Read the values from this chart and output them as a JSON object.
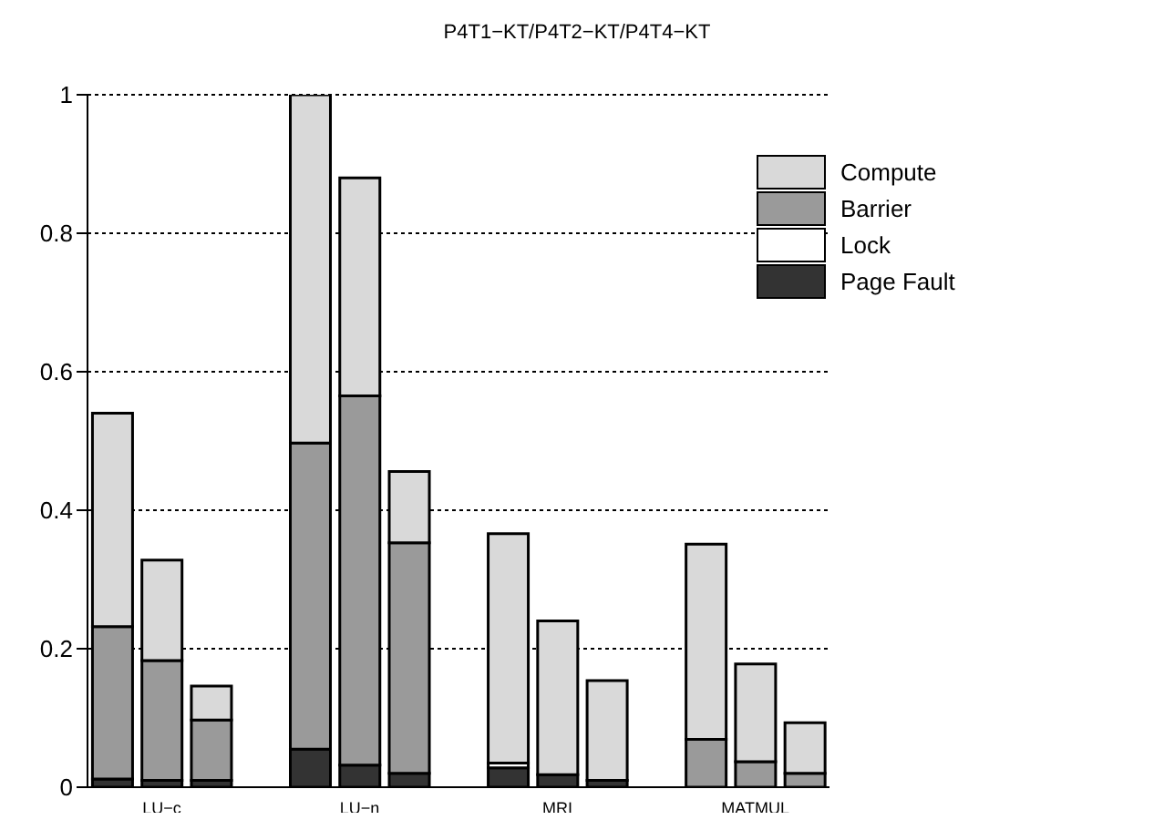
{
  "chart_data": {
    "type": "bar",
    "title": "P4T1−KT/P4T2−KT/P4T4−KT",
    "stacked": true,
    "categories": [
      null,
      "LU−c",
      null,
      null,
      null,
      "LU−n",
      null,
      null,
      null,
      "MRI",
      null,
      null,
      null,
      "MATMUL",
      null
    ],
    "series": [
      {
        "name": "Page Fault",
        "color": "#333333",
        "values": [
          0.012,
          0.01,
          0.01,
          null,
          0.055,
          0.032,
          0.02,
          null,
          0.028,
          0.018,
          0.01,
          null,
          null,
          null,
          null
        ]
      },
      {
        "name": "Lock",
        "color": "#ffffff",
        "values": [
          0,
          0,
          0,
          null,
          0,
          0,
          0,
          null,
          0.007,
          0,
          0,
          null,
          0,
          0,
          0
        ]
      },
      {
        "name": "Barrier",
        "color": "#9a9a9a",
        "values": [
          0.22,
          0.173,
          0.087,
          null,
          0.442,
          0.533,
          0.333,
          null,
          0,
          0,
          0,
          null,
          0.069,
          0.037,
          0.02
        ]
      },
      {
        "name": "Compute",
        "color": "#d9d9d9",
        "values": [
          0.308,
          0.145,
          0.049,
          null,
          0.503,
          0.315,
          0.103,
          null,
          0.331,
          0.222,
          0.144,
          null,
          0.282,
          0.141,
          0.073
        ]
      }
    ],
    "ylim": [
      0,
      1
    ],
    "yticks": [
      0,
      0.2,
      0.4,
      0.6,
      0.8,
      1
    ],
    "grid": "y",
    "legend": "top right"
  }
}
